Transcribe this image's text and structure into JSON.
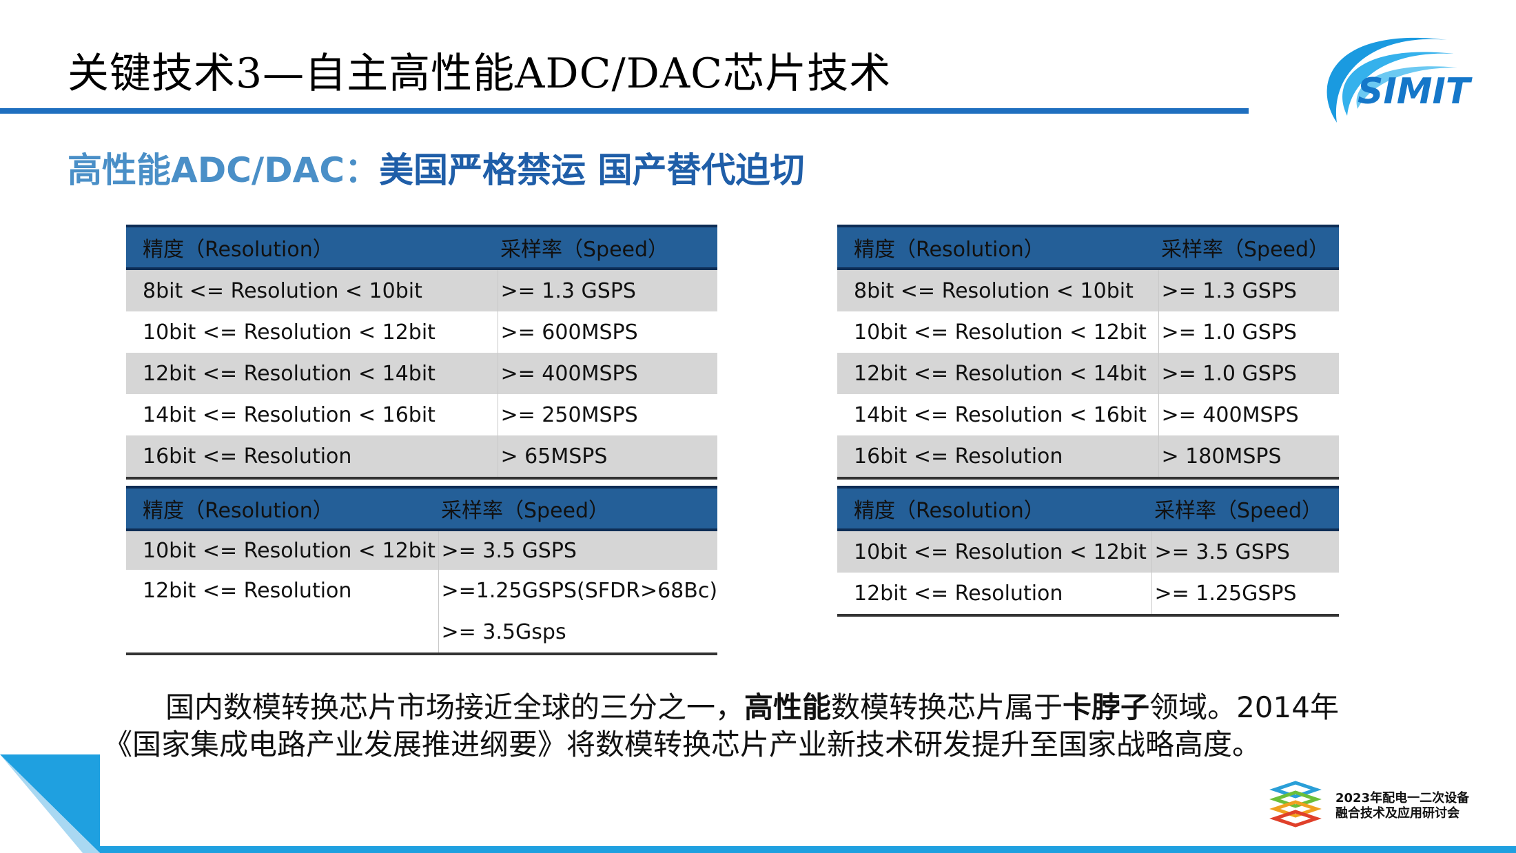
{
  "header": {
    "title": "关键技术3—自主高性能ADC/DAC芯片技术",
    "logo_text": "SIMIT"
  },
  "subtitle": {
    "part_a": "高性能ADC/DAC：",
    "part_b": "美国严格禁运 国产替代迫切"
  },
  "tables": {
    "t1": {
      "headers": [
        "精度（Resolution）",
        "采样率（Speed）"
      ],
      "rows": [
        [
          "8bit <= Resolution < 10bit",
          ">= 1.3 GSPS"
        ],
        [
          "10bit <= Resolution < 12bit",
          ">= 600MSPS"
        ],
        [
          "12bit <= Resolution < 14bit",
          ">= 400MSPS"
        ],
        [
          "14bit <= Resolution < 16bit",
          ">= 250MSPS"
        ],
        [
          "16bit <= Resolution",
          "> 65MSPS"
        ]
      ]
    },
    "t2": {
      "headers": [
        "精度（Resolution）",
        "采样率（Speed）"
      ],
      "rows": [
        [
          "8bit <= Resolution < 10bit",
          ">= 1.3 GSPS"
        ],
        [
          "10bit <= Resolution < 12bit",
          ">= 1.0 GSPS"
        ],
        [
          "12bit <= Resolution < 14bit",
          ">= 1.0 GSPS"
        ],
        [
          "14bit <= Resolution < 16bit",
          ">= 400MSPS"
        ],
        [
          "16bit <= Resolution",
          "> 180MSPS"
        ]
      ]
    },
    "t3": {
      "headers": [
        "精度（Resolution）",
        "采样率（Speed）"
      ],
      "rows": [
        [
          "10bit <= Resolution < 12bit",
          ">= 3.5 GSPS"
        ],
        [
          "12bit <= Resolution",
          ">=1.25GSPS(SFDR>68Bc)"
        ],
        [
          "",
          ">= 3.5Gsps"
        ]
      ]
    },
    "t4": {
      "headers": [
        "精度（Resolution）",
        "采样率（Speed）"
      ],
      "rows": [
        [
          "10bit <= Resolution < 12bit",
          ">= 3.5 GSPS"
        ],
        [
          "12bit <= Resolution",
          ">= 1.25GSPS"
        ]
      ]
    }
  },
  "paragraph": {
    "l1_a": "国内数模转换芯片市场接近全球的三分之一，",
    "l1_b": "高性能",
    "l1_c": "数模转换芯片属于",
    "l1_d": "卡脖子",
    "l1_e": "领域。2014年",
    "l2": "《国家集成电路产业发展推进纲要》将数模转换芯片产业新技术研发提升至国家战略高度。"
  },
  "event": {
    "line1": "2023年配电一二次设备",
    "line2": "融合技术及应用研讨会"
  },
  "colors": {
    "title_bar": "#1f6fbf",
    "table_header": "#245f98",
    "subtitle_light": "#4a8fc7",
    "subtitle_dark": "#1f5ea8",
    "accent": "#1fa0e0"
  }
}
